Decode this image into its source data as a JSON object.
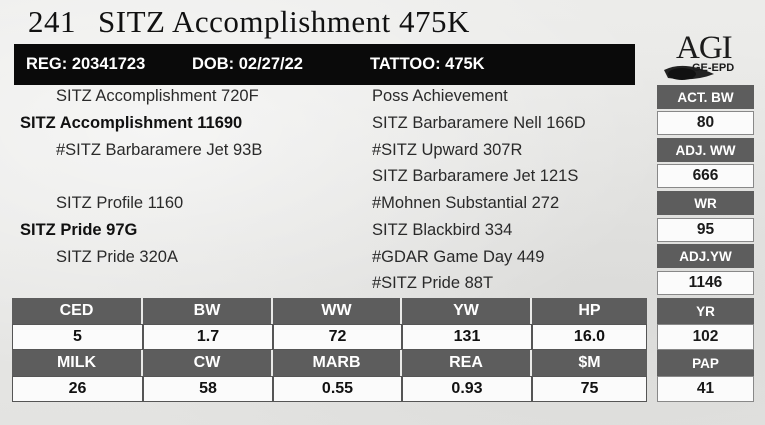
{
  "title": {
    "lot": "241",
    "name": "SITZ Accomplishment 475K"
  },
  "infobar": {
    "reg": "REG: 20341723",
    "dob": "DOB: 02/27/22",
    "tattoo": "TATTOO: 475K"
  },
  "logo": {
    "text": "AGI",
    "sub": "GE-EPD"
  },
  "pedigree": {
    "left": [
      "SITZ Accomplishment 720F",
      "SITZ Accomplishment 11690",
      "#SITZ Barbaramere Jet 93B",
      "SITZ Profile 1160",
      "SITZ Pride 97G",
      "SITZ Pride 320A"
    ],
    "right": [
      "Poss Achievement",
      "SITZ Barbaramere Nell 166D",
      "#SITZ Upward 307R",
      "SITZ Barbaramere Jet 121S",
      "#Mohnen Substantial 272",
      "SITZ Blackbird 334",
      "#GDAR Game Day 449",
      "#SITZ Pride 88T"
    ]
  },
  "side": [
    {
      "label": "ACT. BW",
      "value": "80"
    },
    {
      "label": "ADJ. WW",
      "value": "666"
    },
    {
      "label": "WR",
      "value": "95"
    },
    {
      "label": "ADJ.YW",
      "value": "1146"
    },
    {
      "label": "YR",
      "value": "102"
    },
    {
      "label": "PAP",
      "value": "41"
    }
  ],
  "epd": {
    "row1": {
      "headers": [
        "CED",
        "BW",
        "WW",
        "YW",
        "HP"
      ],
      "values": [
        "5",
        "1.7",
        "72",
        "131",
        "16.0"
      ]
    },
    "row2": {
      "headers": [
        "MILK",
        "CW",
        "MARB",
        "REA",
        "$M"
      ],
      "values": [
        "26",
        "58",
        "0.55",
        "0.93",
        "75"
      ]
    }
  }
}
